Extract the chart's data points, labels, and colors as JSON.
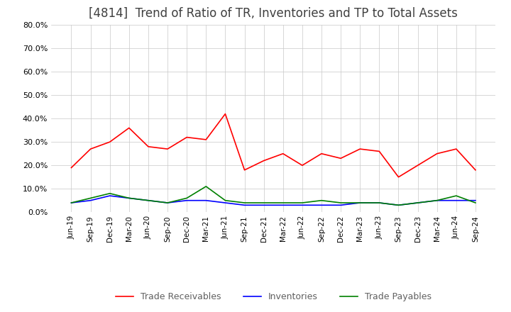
{
  "title": "[4814]  Trend of Ratio of TR, Inventories and TP to Total Assets",
  "title_fontsize": 12,
  "title_color": "#404040",
  "background_color": "#ffffff",
  "plot_bg_color": "#ffffff",
  "grid_color": "#c8c8c8",
  "ylim": [
    0.0,
    0.8
  ],
  "yticks": [
    0.0,
    0.1,
    0.2,
    0.3,
    0.4,
    0.5,
    0.6,
    0.7,
    0.8
  ],
  "x_labels": [
    "Jun-19",
    "Sep-19",
    "Dec-19",
    "Mar-20",
    "Jun-20",
    "Sep-20",
    "Dec-20",
    "Mar-21",
    "Jun-21",
    "Sep-21",
    "Dec-21",
    "Mar-22",
    "Jun-22",
    "Sep-22",
    "Dec-22",
    "Mar-23",
    "Jun-23",
    "Sep-23",
    "Dec-23",
    "Mar-24",
    "Jun-24",
    "Sep-24"
  ],
  "trade_receivables": [
    0.19,
    0.27,
    0.3,
    0.36,
    0.28,
    0.27,
    0.32,
    0.31,
    0.42,
    0.18,
    0.22,
    0.25,
    0.2,
    0.25,
    0.23,
    0.27,
    0.26,
    0.15,
    0.2,
    0.25,
    0.27,
    0.18
  ],
  "inventories": [
    0.04,
    0.05,
    0.07,
    0.06,
    0.05,
    0.04,
    0.05,
    0.05,
    0.04,
    0.03,
    0.03,
    0.03,
    0.03,
    0.03,
    0.03,
    0.04,
    0.04,
    0.03,
    0.04,
    0.05,
    0.05,
    0.05
  ],
  "trade_payables": [
    0.04,
    0.06,
    0.08,
    0.06,
    0.05,
    0.04,
    0.06,
    0.11,
    0.05,
    0.04,
    0.04,
    0.04,
    0.04,
    0.05,
    0.04,
    0.04,
    0.04,
    0.03,
    0.04,
    0.05,
    0.07,
    0.04
  ],
  "tr_color": "#ff0000",
  "inv_color": "#0000ff",
  "tp_color": "#008000",
  "legend_labels": [
    "Trade Receivables",
    "Inventories",
    "Trade Payables"
  ]
}
